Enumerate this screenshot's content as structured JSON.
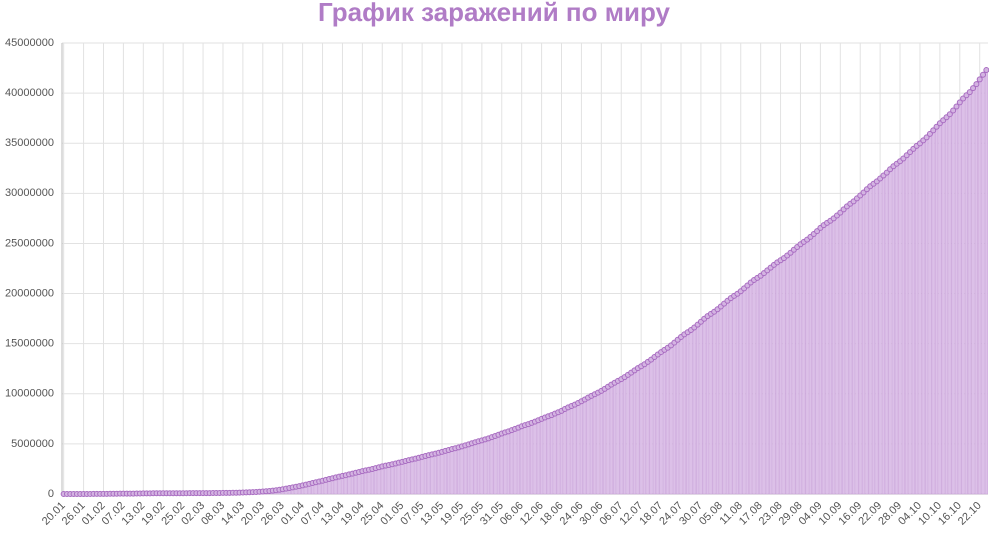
{
  "chart_data": {
    "type": "bar",
    "title": "График заражений по миру",
    "categories": [
      "20.01",
      null,
      null,
      null,
      null,
      null,
      "26.01",
      null,
      null,
      null,
      null,
      null,
      "01.02",
      null,
      null,
      null,
      null,
      null,
      "07.02",
      null,
      null,
      null,
      null,
      null,
      "13.02",
      null,
      null,
      null,
      null,
      null,
      "19.02",
      null,
      null,
      null,
      null,
      null,
      "25.02",
      null,
      null,
      null,
      null,
      null,
      "02.03",
      null,
      null,
      null,
      null,
      null,
      "08.03",
      null,
      null,
      null,
      null,
      null,
      "14.03",
      null,
      null,
      null,
      null,
      null,
      "20.03",
      null,
      null,
      null,
      null,
      null,
      "26.03",
      null,
      null,
      null,
      null,
      null,
      "01.04",
      null,
      null,
      null,
      null,
      null,
      "07.04",
      null,
      null,
      null,
      null,
      null,
      "13.04",
      null,
      null,
      null,
      null,
      null,
      "19.04",
      null,
      null,
      null,
      null,
      null,
      "25.04",
      null,
      null,
      null,
      null,
      null,
      "01.05",
      null,
      null,
      null,
      null,
      null,
      "07.05",
      null,
      null,
      null,
      null,
      null,
      "13.05",
      null,
      null,
      null,
      null,
      null,
      "19.05",
      null,
      null,
      null,
      null,
      null,
      "25.05",
      null,
      null,
      null,
      null,
      null,
      "31.05",
      null,
      null,
      null,
      null,
      null,
      "06.06",
      null,
      null,
      null,
      null,
      null,
      "12.06",
      null,
      null,
      null,
      null,
      null,
      "18.06",
      null,
      null,
      null,
      null,
      null,
      "24.06",
      null,
      null,
      null,
      null,
      null,
      "30.06",
      null,
      null,
      null,
      null,
      null,
      "06.07",
      null,
      null,
      null,
      null,
      null,
      "12.07",
      null,
      null,
      null,
      null,
      null,
      "18.07",
      null,
      null,
      null,
      null,
      null,
      "24.07",
      null,
      null,
      null,
      null,
      null,
      "30.07",
      null,
      null,
      null,
      null,
      null,
      "05.08",
      null,
      null,
      null,
      null,
      null,
      "11.08",
      null,
      null,
      null,
      null,
      null,
      "17.08",
      null,
      null,
      null,
      null,
      null,
      "23.08",
      null,
      null,
      null,
      null,
      null,
      "29.08",
      null,
      null,
      null,
      null,
      null,
      "04.09",
      null,
      null,
      null,
      null,
      null,
      "10.09",
      null,
      null,
      null,
      null,
      null,
      "16.09",
      null,
      null,
      null,
      null,
      null,
      "22.09",
      null,
      null,
      null,
      null,
      null,
      "28.09",
      null,
      null,
      null,
      null,
      null,
      "04.10",
      null,
      null,
      null,
      null,
      null,
      "10.10",
      null,
      null,
      null,
      null,
      null,
      "16.10",
      null,
      null,
      null,
      null,
      null,
      "22.10",
      null,
      null
    ],
    "values": [
      282,
      314,
      581,
      846,
      1320,
      2014,
      2798,
      4593,
      6065,
      7818,
      9826,
      11953,
      14557,
      17391,
      20630,
      24554,
      28276,
      31481,
      34886,
      37558,
      40554,
      43103,
      45171,
      46997,
      60328,
      64543,
      67015,
      69176,
      71329,
      73332,
      75184,
      75700,
      76677,
      77673,
      78651,
      79205,
      80087,
      80828,
      81820,
      83112,
      84615,
      86604,
      88585,
      90443,
      93016,
      95314,
      98425,
      102050,
      106099,
      109991,
      114381,
      118948,
      126214,
      134576,
      145483,
      156653,
      169593,
      182490,
      198234,
      218822,
      244933,
      275597,
      305036,
      337489,
      378287,
      422574,
      471035,
      531865,
      596366,
      663127,
      723390,
      784716,
      858361,
      935189,
      1016128,
      1096000,
      1175000,
      1249000,
      1325000,
      1406000,
      1491000,
      1577000,
      1657000,
      1735000,
      1807000,
      1877000,
      1957000,
      2037000,
      2120000,
      2200000,
      2277000,
      2354000,
      2425000,
      2500000,
      2584000,
      2668000,
      2755000,
      2829000,
      2895000,
      2968000,
      3044000,
      3126000,
      3211000,
      3295000,
      3376000,
      3452000,
      3531000,
      3617000,
      3706000,
      3795000,
      3878000,
      3954000,
      4031000,
      4116000,
      4202000,
      4298000,
      4393000,
      4484000,
      4565000,
      4654000,
      4747000,
      4849000,
      4954000,
      5061000,
      5162000,
      5260000,
      5353000,
      5449000,
      5554000,
      5671000,
      5788000,
      5917000,
      6040000,
      6144000,
      6250000,
      6370000,
      6499000,
      6627000,
      6754000,
      6866000,
      6970000,
      7091000,
      7227000,
      7361000,
      7497000,
      7631000,
      7753000,
      7874000,
      8014000,
      8156000,
      8298000,
      8478000,
      8646000,
      8776000,
      8914000,
      9080000,
      9251000,
      9430000,
      9614000,
      9791000,
      9952000,
      10113000,
      10285000,
      10493000,
      10700000,
      10908000,
      11101000,
      11282000,
      11456000,
      11666000,
      11883000,
      12109000,
      12339000,
      12560000,
      12747000,
      12947000,
      13181000,
      13413000,
      13665000,
      13915000,
      14162000,
      14378000,
      14589000,
      14829000,
      15110000,
      15395000,
      15671000,
      15923000,
      16142000,
      16363000,
      16616000,
      16894000,
      17190000,
      17484000,
      17744000,
      17968000,
      18186000,
      18437000,
      18707000,
      18993000,
      19276000,
      19541000,
      19766000,
      19983000,
      20235000,
      20517000,
      20803000,
      21098000,
      21351000,
      21567000,
      21778000,
      22036000,
      22315000,
      22585000,
      22858000,
      23112000,
      23322000,
      23541000,
      23793000,
      24076000,
      24368000,
      24651000,
      24921000,
      25152000,
      25385000,
      25660000,
      25939000,
      26227000,
      26549000,
      26826000,
      27056000,
      27268000,
      27504000,
      27788000,
      28072000,
      28397000,
      28700000,
      28960000,
      29202000,
      29491000,
      29783000,
      30089000,
      30404000,
      30705000,
      30956000,
      31196000,
      31482000,
      31775000,
      32069000,
      32402000,
      32700000,
      32958000,
      33202000,
      33477000,
      33795000,
      34108000,
      34432000,
      34730000,
      34984000,
      35279000,
      35588000,
      35928000,
      36287000,
      36645000,
      36992000,
      37297000,
      37591000,
      37897000,
      38267000,
      38668000,
      39081000,
      39459000,
      39781000,
      40097000,
      40492000,
      40892000,
      41373000,
      41836000,
      42300000
    ],
    "color": "#dcc0e8",
    "line": true,
    "line_color": "#a86cc1",
    "ylim": [
      0,
      45000000
    ],
    "yticks": [
      0,
      5000000,
      10000000,
      15000000,
      20000000,
      25000000,
      30000000,
      35000000,
      40000000,
      45000000
    ],
    "grid": true
  }
}
